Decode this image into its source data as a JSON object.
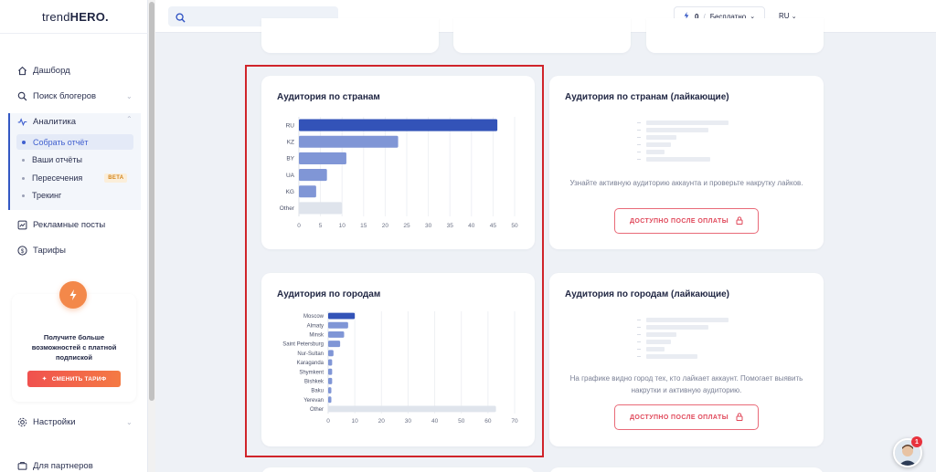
{
  "app": {
    "logo_prefix": "trend",
    "logo_suffix": "HERO"
  },
  "sidebar": {
    "items": [
      {
        "label": "Дашборд",
        "icon": "home-icon"
      },
      {
        "label": "Поиск блогеров",
        "icon": "search-icon"
      },
      {
        "label": "Аналитика",
        "icon": "analytics-icon"
      },
      {
        "label": "Рекламные посты",
        "icon": "posts-icon"
      },
      {
        "label": "Тарифы",
        "icon": "dollar-icon"
      },
      {
        "label": "Настройки",
        "icon": "gear-icon"
      },
      {
        "label": "Для партнеров",
        "icon": "partners-icon"
      }
    ],
    "analytics_sub": [
      {
        "label": "Собрать отчёт"
      },
      {
        "label": "Ваши отчёты"
      },
      {
        "label": "Пересечения",
        "badge": "BETA"
      },
      {
        "label": "Трекинг"
      }
    ],
    "promo": {
      "text": "Получите больше возможностей с платной подпиской",
      "button": "СМЕНИТЬ ТАРИФ",
      "accent": "#f3884a"
    }
  },
  "topbar": {
    "search_placeholder": "",
    "balance": "0",
    "plan": "Бесплатно",
    "lang": "RU"
  },
  "cards": {
    "countries": {
      "title": "Аудитория по странам"
    },
    "countries_liking": {
      "title": "Аудитория по странам (лайкающие)",
      "text": "Узнайте активную аудиторию аккаунта и проверьте накрутку лайков.",
      "button": "ДОСТУПНО ПОСЛЕ ОПЛАТЫ"
    },
    "cities": {
      "title": "Аудитория по городам"
    },
    "cities_liking": {
      "title": "Аудитория по городам (лайкающие)",
      "text": "На графике видно город тех, кто лайкает аккаунт. Помогает выявить накрутки и активную аудиторию.",
      "button": "ДОСТУПНО ПОСЛЕ ОПЛАТЫ"
    }
  },
  "notifications": {
    "count": "1"
  },
  "chart_data": [
    {
      "type": "bar",
      "orientation": "horizontal",
      "categories": [
        "RU",
        "KZ",
        "BY",
        "UA",
        "KG",
        "Other"
      ],
      "values": [
        46,
        23,
        11,
        6.5,
        4,
        10
      ],
      "xlim": [
        0,
        50
      ],
      "xticks": [
        0,
        5,
        10,
        15,
        20,
        25,
        30,
        35,
        40,
        45,
        50
      ],
      "colors": [
        "#3353b8",
        "#8096d6",
        "#8096d6",
        "#8096d6",
        "#8096d6",
        "#dfe4ec"
      ],
      "grid": true
    },
    {
      "type": "bar",
      "orientation": "horizontal",
      "categories": [
        "Moscow",
        "Almaty",
        "Minsk",
        "Saint Petersburg",
        "Nur-Sultan",
        "Karaganda",
        "Shymkent",
        "Bishkek",
        "Baku",
        "Yerevan",
        "Other"
      ],
      "values": [
        10,
        7.5,
        6,
        4.5,
        2,
        1.5,
        1.5,
        1.5,
        1.2,
        1.2,
        63
      ],
      "xlim": [
        0,
        70
      ],
      "xticks": [
        0,
        10,
        20,
        30,
        40,
        50,
        60,
        70
      ],
      "colors": [
        "#3353b8",
        "#8096d6",
        "#8096d6",
        "#8096d6",
        "#8096d6",
        "#8096d6",
        "#8096d6",
        "#8096d6",
        "#8096d6",
        "#8096d6",
        "#dfe4ec"
      ],
      "grid": true
    }
  ]
}
